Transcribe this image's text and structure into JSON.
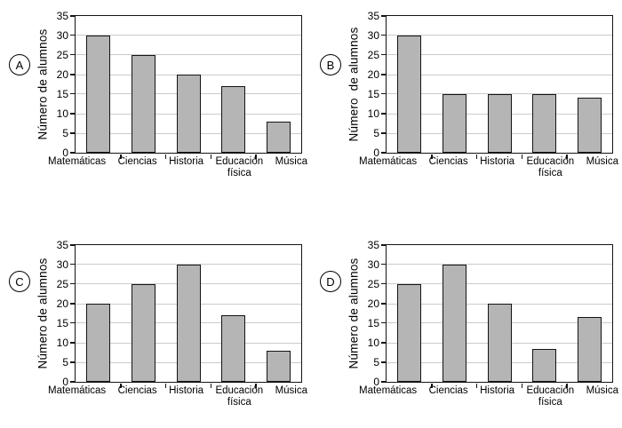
{
  "page": {
    "background": "#ffffff"
  },
  "style": {
    "bar_fill": "#b5b5b5",
    "bar_border": "#141414",
    "plot_border": "#141414",
    "gridline_color": "#cbcbcb",
    "text_color": "#000000"
  },
  "chart_data": [
    {
      "panel_label": "A",
      "type": "bar",
      "title": "",
      "ylabel": "Número de alumnos",
      "xlabel": "",
      "categories": [
        "Matemáticas",
        "Ciencias",
        "Historia",
        "Educación física",
        "Música"
      ],
      "category_display_lines": [
        [
          "Matemáticas"
        ],
        [
          "Ciencias"
        ],
        [
          "Historia"
        ],
        [
          "Educación",
          "física"
        ],
        [
          "Música"
        ]
      ],
      "values": [
        30,
        25,
        20,
        17,
        8
      ],
      "ylim": [
        0,
        35
      ],
      "yticks": [
        0,
        5,
        10,
        15,
        20,
        25,
        30,
        35
      ],
      "grid": true
    },
    {
      "panel_label": "B",
      "type": "bar",
      "title": "",
      "ylabel": "Número  de alumnos",
      "xlabel": "",
      "categories": [
        "Matemáticas",
        "Ciencias",
        "Historia",
        "Educación física",
        "Música"
      ],
      "category_display_lines": [
        [
          "Matemáticas"
        ],
        [
          "Ciencias"
        ],
        [
          "Historia"
        ],
        [
          "Educación",
          "física"
        ],
        [
          "Música"
        ]
      ],
      "values": [
        30,
        15,
        15,
        15,
        14
      ],
      "ylim": [
        0,
        35
      ],
      "yticks": [
        0,
        5,
        10,
        15,
        20,
        25,
        30,
        35
      ],
      "grid": true
    },
    {
      "panel_label": "C",
      "type": "bar",
      "title": "",
      "ylabel": "Número de alumnos",
      "xlabel": "",
      "categories": [
        "Matemáticas",
        "Ciencias",
        "Historia",
        "Educación física",
        "Música"
      ],
      "category_display_lines": [
        [
          "Matemáticas"
        ],
        [
          "Ciencias"
        ],
        [
          "Historia"
        ],
        [
          "Educación",
          "física"
        ],
        [
          "Música"
        ]
      ],
      "values": [
        20,
        25,
        30,
        17,
        8
      ],
      "ylim": [
        0,
        35
      ],
      "yticks": [
        0,
        5,
        10,
        15,
        20,
        25,
        30,
        35
      ],
      "grid": true
    },
    {
      "panel_label": "D",
      "type": "bar",
      "title": "",
      "ylabel": "Número de alumnos",
      "xlabel": "",
      "categories": [
        "Matemáticas",
        "Ciencias",
        "Historia",
        "Educación física",
        "Música"
      ],
      "category_display_lines": [
        [
          "Matemáticas"
        ],
        [
          "Ciencias"
        ],
        [
          "Historia"
        ],
        [
          "Educación",
          "física"
        ],
        [
          "Música"
        ]
      ],
      "values": [
        25,
        30,
        20,
        8.5,
        16.5
      ],
      "ylim": [
        0,
        35
      ],
      "yticks": [
        0,
        5,
        10,
        15,
        20,
        25,
        30,
        35
      ],
      "grid": true
    }
  ]
}
